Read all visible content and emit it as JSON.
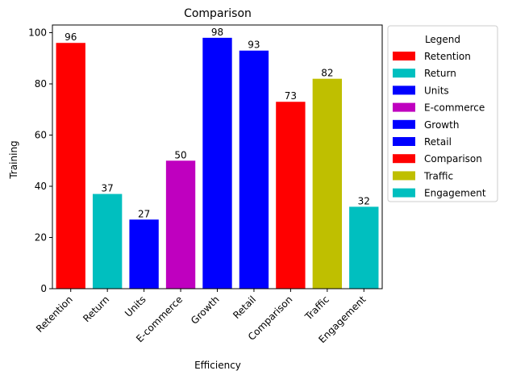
{
  "chart_data": {
    "type": "bar",
    "title": "Comparison",
    "xlabel": "Efficiency",
    "ylabel": "Training",
    "categories": [
      "Retention",
      "Return",
      "Units",
      "E-commerce",
      "Growth",
      "Retail",
      "Comparison",
      "Traffic",
      "Engagement"
    ],
    "values": [
      96,
      37,
      27,
      50,
      98,
      93,
      73,
      82,
      32
    ],
    "colors": [
      "#ff0000",
      "#00bfbf",
      "#0000ff",
      "#bf00bf",
      "#0000ff",
      "#0000ff",
      "#ff0000",
      "#bfbf00",
      "#00bfbf"
    ],
    "ylim": [
      0,
      103
    ],
    "yticks": [
      0,
      20,
      40,
      60,
      80,
      100
    ],
    "grid": false,
    "legend": {
      "title": "Legend",
      "placement": "outside-right",
      "entries": [
        "Retention",
        "Return",
        "Units",
        "E-commerce",
        "Growth",
        "Retail",
        "Comparison",
        "Traffic",
        "Engagement"
      ]
    }
  }
}
